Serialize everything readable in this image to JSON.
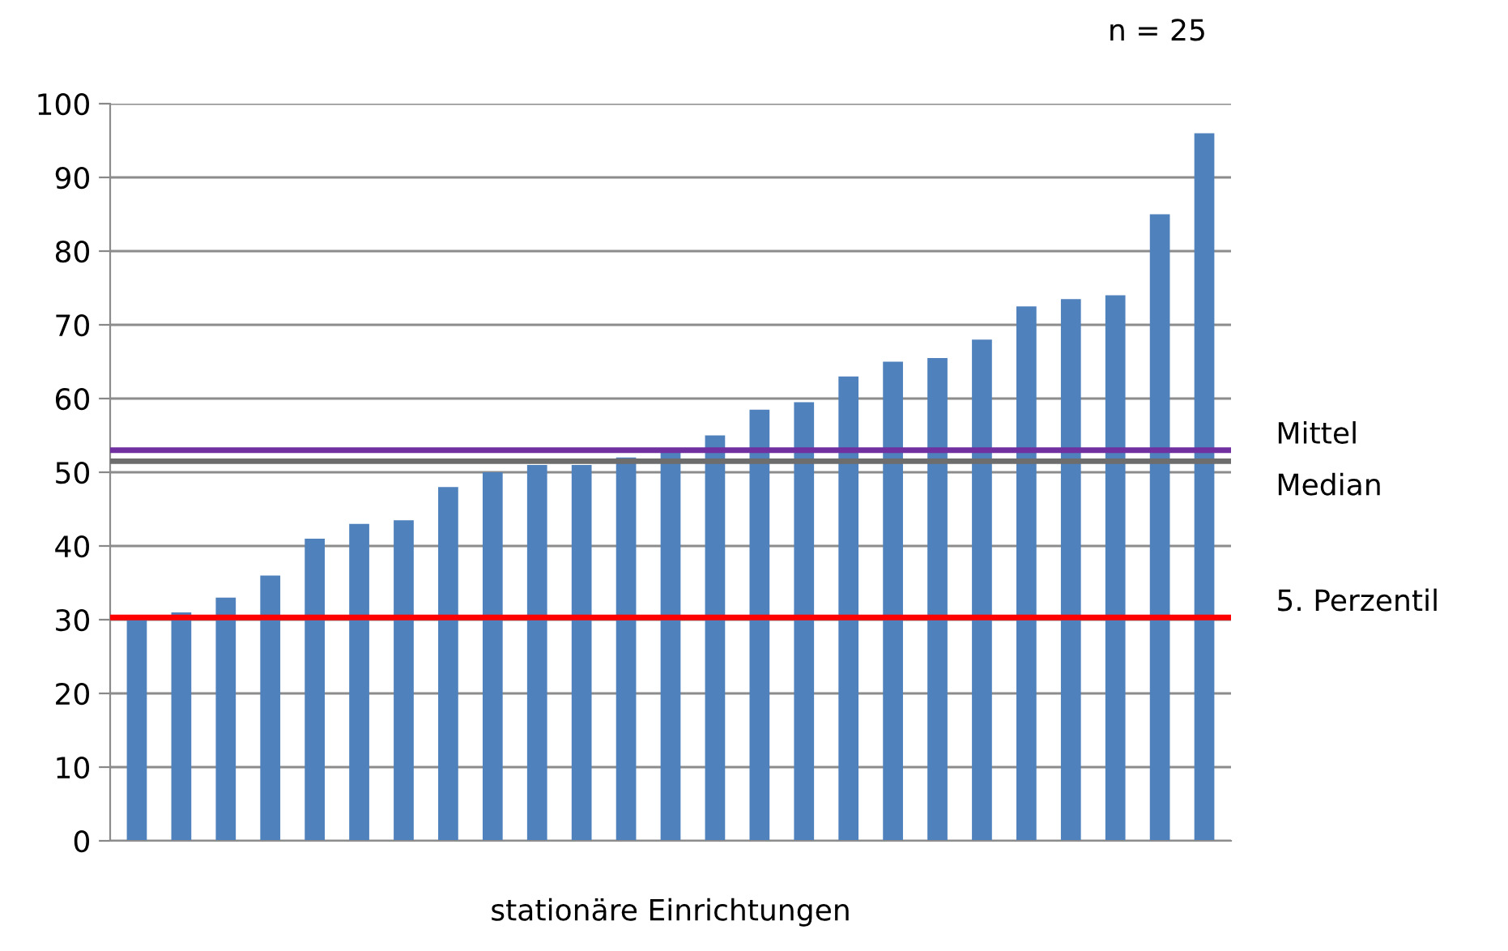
{
  "chart_data": {
    "type": "bar",
    "xlabel": "stationäre Einrichtungen",
    "annotations": [
      "n = 25"
    ],
    "categories": [
      null,
      null,
      null,
      null,
      null,
      null,
      null,
      null,
      null,
      null,
      null,
      null,
      null,
      null,
      null,
      null,
      null,
      null,
      null,
      null,
      null,
      null,
      null,
      null,
      null
    ],
    "values": [
      30.5,
      31,
      33,
      36,
      41,
      43,
      43.5,
      48,
      50,
      51,
      51,
      52,
      53,
      55,
      58.5,
      59.5,
      63,
      65,
      65.5,
      68,
      72.5,
      73.5,
      74,
      85,
      96
    ],
    "color": "#4f81bd",
    "ylim": [
      0,
      100
    ],
    "yticks": [
      0,
      10,
      20,
      30,
      40,
      50,
      60,
      70,
      80,
      90,
      100
    ],
    "grid": "y",
    "ref_lines": [
      {
        "axis": "y",
        "value": 53,
        "label": "Mittel",
        "color": "#7030a0"
      },
      {
        "axis": "y",
        "value": 51.5,
        "label": "Median",
        "color": "#6d6d6d"
      },
      {
        "axis": "y",
        "value": 30.3,
        "label": "5. Perzentil",
        "color": "#ff0000"
      }
    ]
  }
}
